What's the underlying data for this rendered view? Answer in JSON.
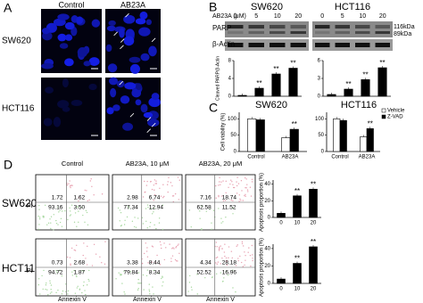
{
  "panel_labels": [
    "A",
    "B",
    "C",
    "D"
  ],
  "panel_a": {
    "columns": [
      "Control",
      "AB23A"
    ],
    "rows": [
      "SW620",
      "HCT116"
    ]
  },
  "panel_b": {
    "dose_label": "AB23A (μM)",
    "doses": [
      "0",
      "5",
      "10",
      "20"
    ],
    "cell_lines": [
      "SW620",
      "HCT116"
    ],
    "bands": [
      "PARP",
      "β-Actin"
    ],
    "sizes": [
      "116kDa",
      "89kDa"
    ],
    "ylabel": "Cleaved PARP/β-Actin",
    "charts": [
      {
        "type": "bar",
        "values": [
          0.2,
          1.8,
          5,
          6.3
        ],
        "annotations": [
          null,
          "**",
          "**",
          "**"
        ],
        "ylim": [
          0,
          8
        ],
        "yticks": [
          0,
          4,
          8
        ],
        "color": "#000000"
      },
      {
        "type": "bar",
        "values": [
          0.3,
          1.2,
          2.8,
          4.8
        ],
        "annotations": [
          null,
          "**",
          "**",
          "**"
        ],
        "ylim": [
          0,
          6
        ],
        "yticks": [
          0,
          3,
          6
        ],
        "color": "#000000"
      }
    ]
  },
  "panel_c": {
    "ylabel": "Cell viability (%)",
    "legend": [
      {
        "name": "Vehicle",
        "color": "#ffffff"
      },
      {
        "name": "Z-VAD",
        "color": "#000000"
      }
    ],
    "charts": [
      {
        "type": "bar",
        "title": "SW620",
        "categories": [
          "Control",
          "AB23A"
        ],
        "series": [
          {
            "values": [
              100,
              42
            ]
          },
          {
            "values": [
              97,
              68
            ]
          }
        ],
        "annotations": [
          null,
          "**"
        ],
        "ylim": [
          0,
          120
        ],
        "yticks": [
          0,
          50,
          100
        ]
      },
      {
        "type": "bar",
        "title": "HCT116",
        "categories": [
          "Control",
          "AB23A"
        ],
        "series": [
          {
            "values": [
              100,
              45
            ]
          },
          {
            "values": [
              95,
              70
            ]
          }
        ],
        "annotations": [
          null,
          "**"
        ],
        "ylim": [
          0,
          120
        ],
        "yticks": [
          0,
          50,
          100
        ]
      }
    ]
  },
  "panel_d": {
    "columns": [
      "Control",
      "AB23A, 10 μM",
      "AB23A, 20 μM"
    ],
    "x_axis": "Annexin V",
    "y_axis": "PI",
    "ylabel": "Apoptosis proportion (%)",
    "rows": [
      {
        "name": "SW620",
        "plots": [
          [
            "1.72",
            "1.62",
            "93.16",
            "3.50"
          ],
          [
            "2.98",
            "6.74",
            "77.34",
            "12.94"
          ],
          [
            "7.16",
            "18.74",
            "62.58",
            "11.52"
          ]
        ],
        "chart": {
          "type": "bar",
          "categories": [
            "0",
            "10",
            "20"
          ],
          "values": [
            5,
            26,
            34
          ],
          "annotations": [
            null,
            "**",
            "**"
          ],
          "ylim": [
            0,
            45
          ],
          "yticks": [
            0,
            20,
            40
          ],
          "color": "#000000"
        }
      },
      {
        "name": "HCT116",
        "plots": [
          [
            "0.73",
            "2.68",
            "94.72",
            "1.87"
          ],
          [
            "3.38",
            "8.44",
            "79.84",
            "8.34"
          ],
          [
            "4.34",
            "28.18",
            "52.52",
            "16.96"
          ]
        ],
        "chart": {
          "type": "bar",
          "categories": [
            "0",
            "10",
            "20"
          ],
          "values": [
            5,
            23,
            42
          ],
          "annotations": [
            null,
            "**",
            "**"
          ],
          "ylim": [
            0,
            45
          ],
          "yticks": [
            0,
            20,
            40
          ],
          "color": "#000000"
        }
      }
    ]
  }
}
